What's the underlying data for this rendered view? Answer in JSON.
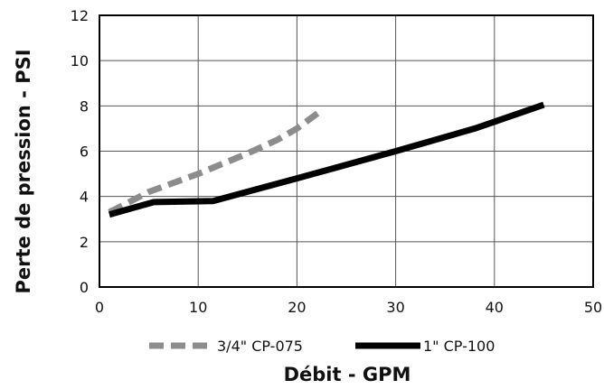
{
  "chart_data": {
    "type": "line",
    "xlabel": "Débit - GPM",
    "ylabel": "Perte de pression - PSI",
    "xlim": [
      0,
      50
    ],
    "ylim": [
      0,
      12
    ],
    "x_ticks": [
      "0",
      "10",
      "20",
      "30",
      "40",
      "50"
    ],
    "y_ticks": [
      "0",
      "2",
      "4",
      "6",
      "8",
      "10",
      "12"
    ],
    "grid": true,
    "legend_position": "bottom",
    "series": [
      {
        "name": "3/4\" CP-075",
        "color": "#8c8c8c",
        "style": "dashed",
        "x": [
          1,
          5,
          10,
          15,
          18,
          20,
          22.5
        ],
        "y": [
          3.3,
          4.2,
          5.0,
          5.9,
          6.5,
          7.0,
          7.8
        ]
      },
      {
        "name": "1\" CP-100",
        "color": "#000000",
        "style": "solid",
        "x": [
          1,
          5.5,
          11.5,
          20,
          30,
          38,
          45
        ],
        "y": [
          3.2,
          3.75,
          3.8,
          4.8,
          6.0,
          7.0,
          8.05
        ]
      }
    ]
  }
}
